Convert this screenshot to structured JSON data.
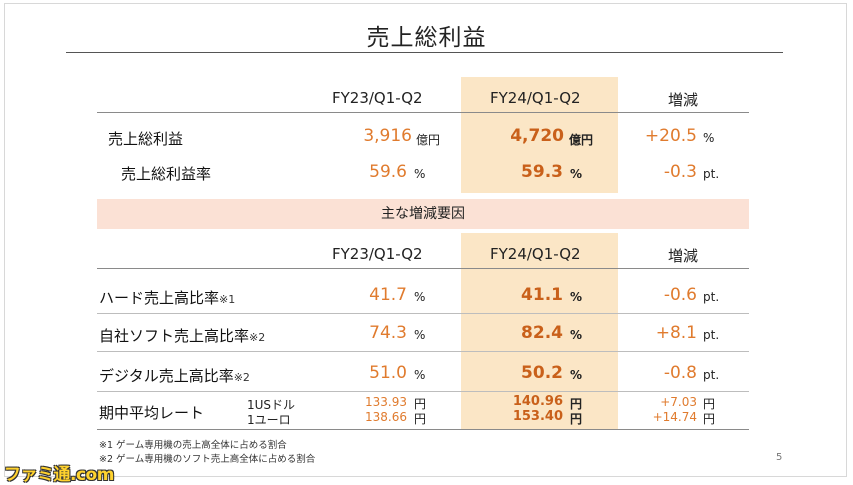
{
  "title": "売上総利益",
  "headers": {
    "prev": "FY23/Q1-Q2",
    "curr": "FY24/Q1-Q2",
    "change": "増減"
  },
  "top_rows": [
    {
      "label": "売上総利益",
      "prev": "3,916",
      "prev_unit": "億円",
      "curr": "4,720",
      "curr_unit": "億円",
      "change": "+20.5",
      "change_unit": "%"
    },
    {
      "label": "売上総利益率",
      "prev": "59.6",
      "prev_unit": "%",
      "curr": "59.3",
      "curr_unit": "%",
      "change": "-0.3",
      "change_unit": "pt."
    }
  ],
  "band_label": "主な増減要因",
  "factor_rows": [
    {
      "label": "ハード売上高比率",
      "mark": "※1",
      "prev": "41.7",
      "prev_unit": "%",
      "curr": "41.1",
      "curr_unit": "%",
      "change": "-0.6",
      "change_unit": "pt."
    },
    {
      "label": "自社ソフト売上高比率",
      "mark": "※2",
      "prev": "74.3",
      "prev_unit": "%",
      "curr": "82.4",
      "curr_unit": "%",
      "change": "+8.1",
      "change_unit": "pt."
    },
    {
      "label": "デジタル売上高比率",
      "mark": "※2",
      "prev": "51.0",
      "prev_unit": "%",
      "curr": "50.2",
      "curr_unit": "%",
      "change": "-0.8",
      "change_unit": "pt."
    }
  ],
  "fx": {
    "label": "期中平均レート",
    "rows": [
      {
        "currency": "1USドル",
        "prev": "133.93",
        "curr": "140.96",
        "change": "+7.03",
        "unit": "円"
      },
      {
        "currency": "1ユーロ",
        "prev": "138.66",
        "curr": "153.40",
        "change": "+14.74",
        "unit": "円"
      }
    ]
  },
  "notes": [
    "※1 ゲーム専用機の売上高全体に占める割合",
    "※2 ゲーム専用機のソフト売上高全体に占める割合"
  ],
  "page_number": "5",
  "watermark": "ファミ通.com",
  "colors": {
    "highlight": "#fbe6c6",
    "band": "#fbe1d5",
    "accent": "#e07b2e",
    "accent_bold": "#c9601a"
  }
}
